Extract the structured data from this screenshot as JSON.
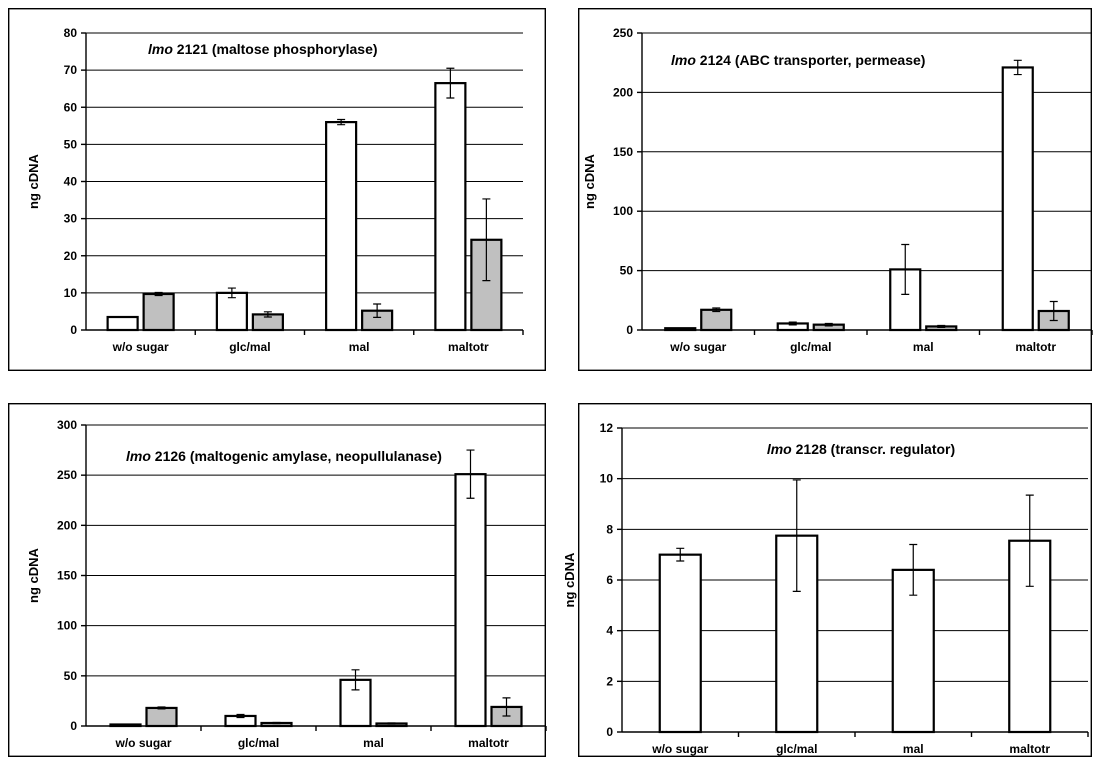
{
  "colors": {
    "series_white": "#ffffff",
    "series_gray": "#c0c0c0",
    "stroke": "#000000"
  },
  "chart_data": [
    {
      "type": "bar",
      "title_gene": "lmo",
      "title_number": "2121",
      "title_rest": "(maltose phosphorylase)",
      "ylabel": "ng cDNA",
      "xlabel": "",
      "ylim": [
        0,
        80
      ],
      "yticks": [
        0,
        10,
        20,
        30,
        40,
        50,
        60,
        70,
        80
      ],
      "grid": true,
      "categories": [
        "w/o sugar",
        "glc/mal",
        "mal",
        "maltotr"
      ],
      "series": [
        {
          "color": "#ffffff",
          "values": [
            3.5,
            10,
            56,
            66.5
          ],
          "errors": [
            0,
            1.3,
            0.7,
            4
          ]
        },
        {
          "color": "#c0c0c0",
          "values": [
            9.7,
            4.2,
            5.2,
            24.3
          ],
          "errors": [
            0.4,
            0.7,
            1.8,
            11
          ]
        }
      ]
    },
    {
      "type": "bar",
      "title_gene": "lmo",
      "title_number": "2124",
      "title_rest": "(ABC transporter, permease)",
      "ylabel": "ng cDNA",
      "xlabel": "",
      "ylim": [
        0,
        250
      ],
      "yticks": [
        0,
        50,
        100,
        150,
        200,
        250
      ],
      "grid": true,
      "categories": [
        "w/o sugar",
        "glc/mal",
        "mal",
        "maltotr"
      ],
      "series": [
        {
          "color": "#ffffff",
          "values": [
            1.5,
            5.5,
            51,
            221
          ],
          "errors": [
            0,
            1.2,
            21,
            6
          ]
        },
        {
          "color": "#c0c0c0",
          "values": [
            17,
            4.5,
            3,
            16
          ],
          "errors": [
            1.5,
            1,
            0.8,
            8
          ]
        }
      ]
    },
    {
      "type": "bar",
      "title_gene": "lmo",
      "title_number": "2126",
      "title_rest": "(maltogenic amylase, neopullulanase)",
      "ylabel": "ng cDNA",
      "xlabel": "",
      "ylim": [
        0,
        300
      ],
      "yticks": [
        0,
        50,
        100,
        150,
        200,
        250,
        300
      ],
      "grid": true,
      "categories": [
        "w/o sugar",
        "glc/mal",
        "mal",
        "maltotr"
      ],
      "series": [
        {
          "color": "#ffffff",
          "values": [
            1.5,
            10,
            46,
            251
          ],
          "errors": [
            0,
            1.5,
            10,
            24
          ]
        },
        {
          "color": "#c0c0c0",
          "values": [
            18,
            3,
            2.5,
            19
          ],
          "errors": [
            1,
            0.5,
            0.5,
            9
          ]
        }
      ]
    },
    {
      "type": "bar",
      "title_gene": "lmo",
      "title_number": "2128",
      "title_rest": "(transcr. regulator)",
      "ylabel": "ng cDNA",
      "xlabel": "",
      "ylim": [
        0,
        12
      ],
      "yticks": [
        0,
        2,
        4,
        6,
        8,
        10,
        12
      ],
      "grid": true,
      "categories": [
        "w/o sugar",
        "glc/mal",
        "mal",
        "maltotr"
      ],
      "series": [
        {
          "color": "#ffffff",
          "values": [
            7,
            7.75,
            6.4,
            7.55
          ],
          "errors": [
            0.25,
            2.2,
            1,
            1.8
          ]
        }
      ]
    }
  ]
}
